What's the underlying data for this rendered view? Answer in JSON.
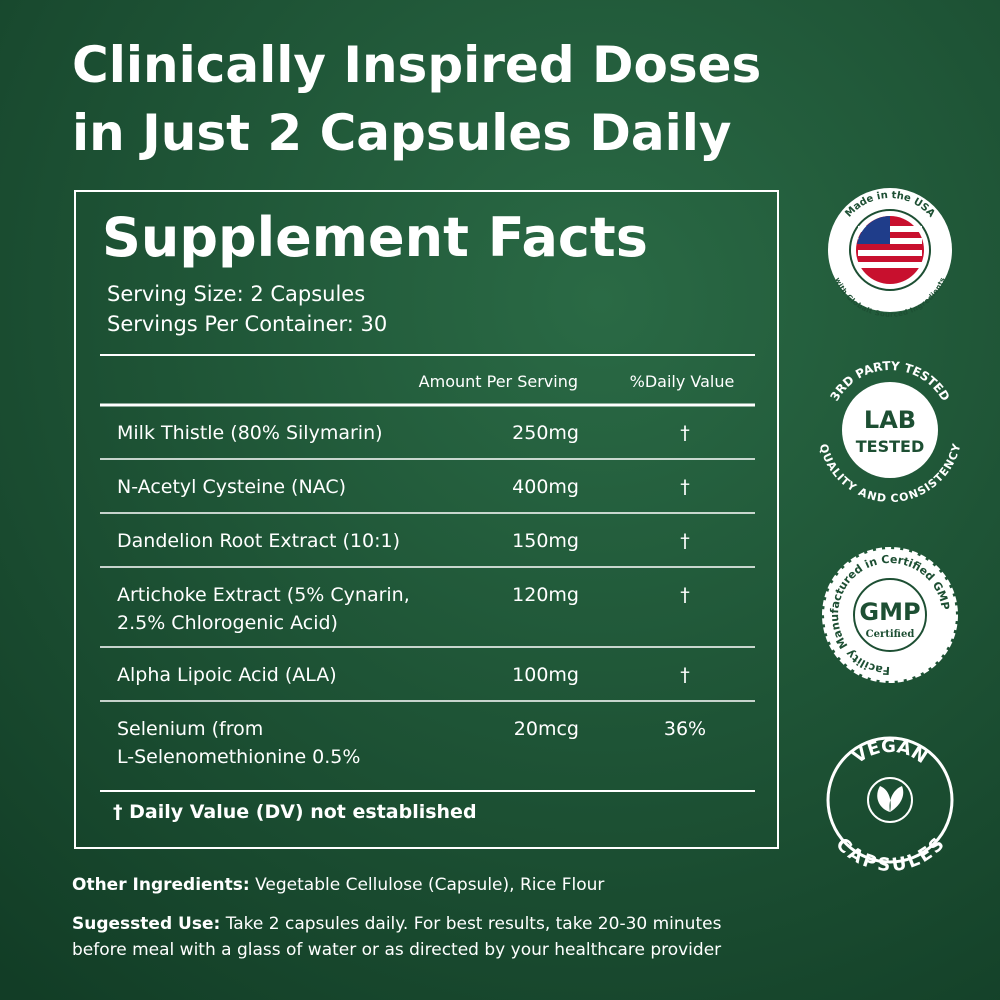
{
  "headline": [
    "Clinically Inspired Doses",
    "in Just 2 Capsules Daily"
  ],
  "facts": {
    "title": "Supplement Facts",
    "serving_size": "Serving Size: 2 Capsules",
    "servings_per_container": "Servings Per Container: 30",
    "columns": [
      "Amount Per Serving",
      "%Daily Value"
    ],
    "rows": [
      {
        "name": [
          "Milk Thistle (80% Silymarin)"
        ],
        "amount": "250mg",
        "dv": "†"
      },
      {
        "name": [
          "N-Acetyl Cysteine (NAC)"
        ],
        "amount": "400mg",
        "dv": "†"
      },
      {
        "name": [
          "Dandelion Root Extract (10:1)"
        ],
        "amount": "150mg",
        "dv": "†"
      },
      {
        "name": [
          "Artichoke Extract (5% Cynarin,",
          "2.5% Chlorogenic Acid)"
        ],
        "amount": "120mg",
        "dv": "†"
      },
      {
        "name": [
          "Alpha Lipoic Acid (ALA)"
        ],
        "amount": "100mg",
        "dv": "†"
      },
      {
        "name": [
          "Selenium (from",
          "L-Selenomethionine 0.5%"
        ],
        "amount": "20mcg",
        "dv": "36%"
      }
    ],
    "footnote": "† Daily Value (DV) not established"
  },
  "other_ingredients": {
    "label": "Other Ingredients:",
    "text": "Vegetable Cellulose (Capsule), Rice Flour"
  },
  "suggested_use": {
    "label": "Sugessted Use:",
    "lines": [
      "Take 2 capsules daily. For best results, take 20-30 minutes",
      "before meal with a glass of water or as directed by your healthcare provider"
    ]
  },
  "badges": {
    "usa": {
      "top": "Made in the USA",
      "bottom": "with Globalt Sourced Ingredients"
    },
    "lab": {
      "top": "3RD PARTY TESTED",
      "main": [
        "LAB",
        "TESTED"
      ],
      "bottom": "QUALITY AND CONSISTENCY"
    },
    "gmp": {
      "ring": "Facility Manufactured in Certified GMP",
      "main": "GMP",
      "sub": "Certified"
    },
    "vegan": {
      "top": "VEGAN",
      "bottom": "CAPSULES"
    }
  }
}
